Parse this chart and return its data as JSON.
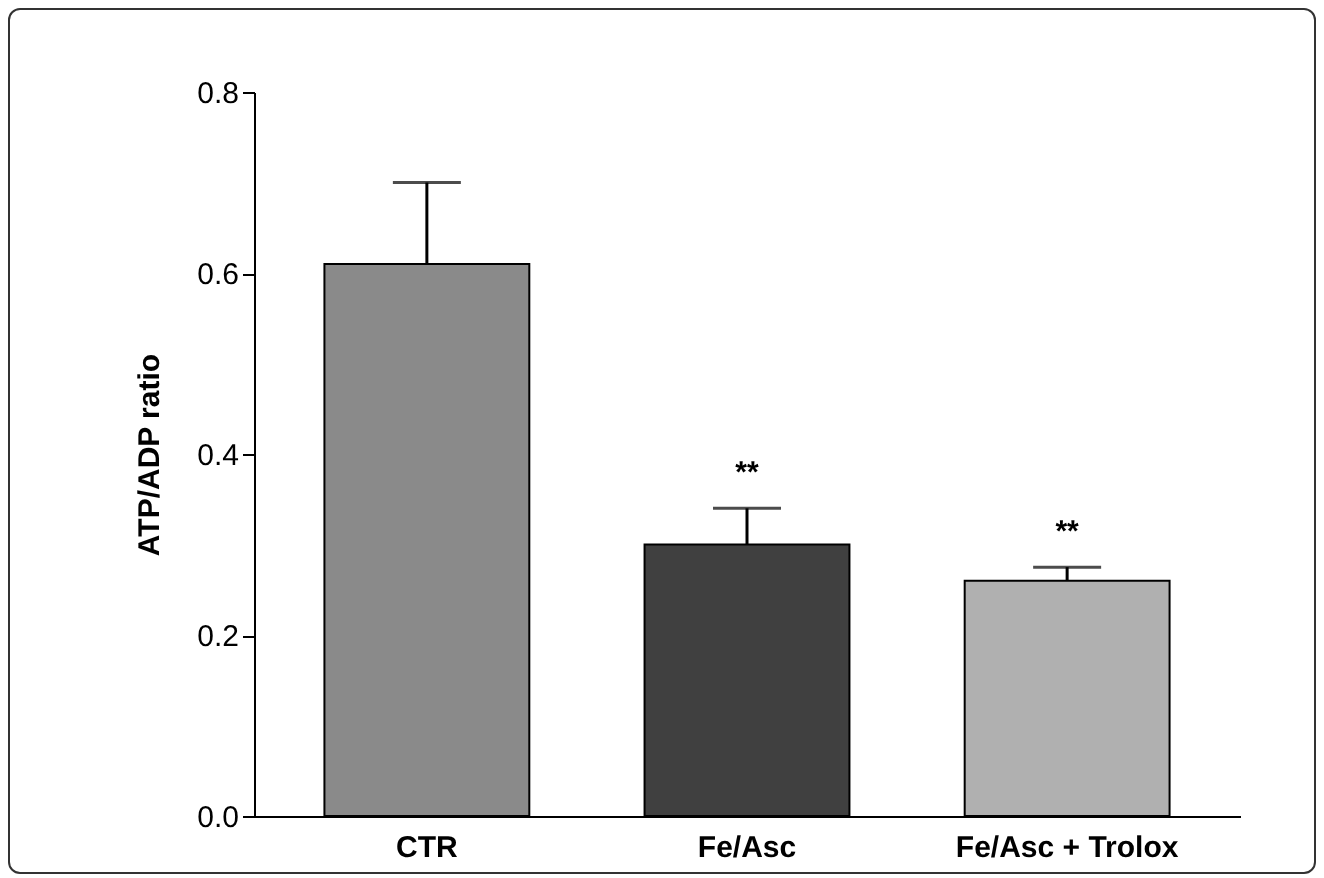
{
  "chart_data": {
    "type": "bar",
    "ylabel": "ATP/ADP ratio",
    "categories": [
      "CTR",
      "Fe/Asc",
      "Fe/Asc + Trolox"
    ],
    "values": [
      0.61,
      0.3,
      0.26
    ],
    "colors": [
      "#8a8a8a",
      "#404040",
      "#b0b0b0"
    ],
    "errors": [
      [
        0.61,
        0.7
      ],
      [
        0.3,
        0.34
      ],
      [
        0.26,
        0.275
      ]
    ],
    "ylim": [
      0,
      0.8
    ],
    "yticks": [
      {
        "value": 0,
        "label": "0.0"
      },
      0.2,
      0.4,
      0.6,
      0.8
    ],
    "annotations": [
      {
        "text": "**",
        "x": "Fe/Asc",
        "y": 0.34
      },
      {
        "text": "**",
        "x": "Fe/Asc + Trolox",
        "y": 0.275
      }
    ],
    "grid": false
  }
}
